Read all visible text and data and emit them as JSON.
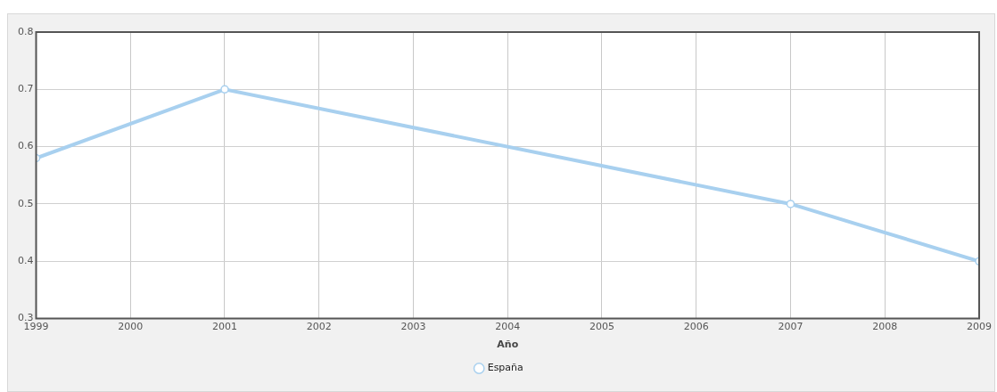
{
  "chart_data": {
    "type": "line",
    "xlabel": "Año",
    "x": [
      1999,
      2001,
      2007,
      2009
    ],
    "series": [
      {
        "name": "España",
        "color": "#a8d0ef",
        "values": [
          0.58,
          0.7,
          0.5,
          0.4
        ]
      }
    ],
    "xlim": [
      1999,
      2009
    ],
    "xticks": [
      1999,
      2000,
      2001,
      2002,
      2003,
      2004,
      2005,
      2006,
      2007,
      2008,
      2009
    ],
    "ylim": [
      0.3,
      0.8
    ],
    "yticks": [
      0.3,
      0.4,
      0.5,
      0.6,
      0.7,
      0.8
    ],
    "grid": true,
    "legend": "bottom",
    "marker": "circle",
    "line_style": "solid"
  }
}
